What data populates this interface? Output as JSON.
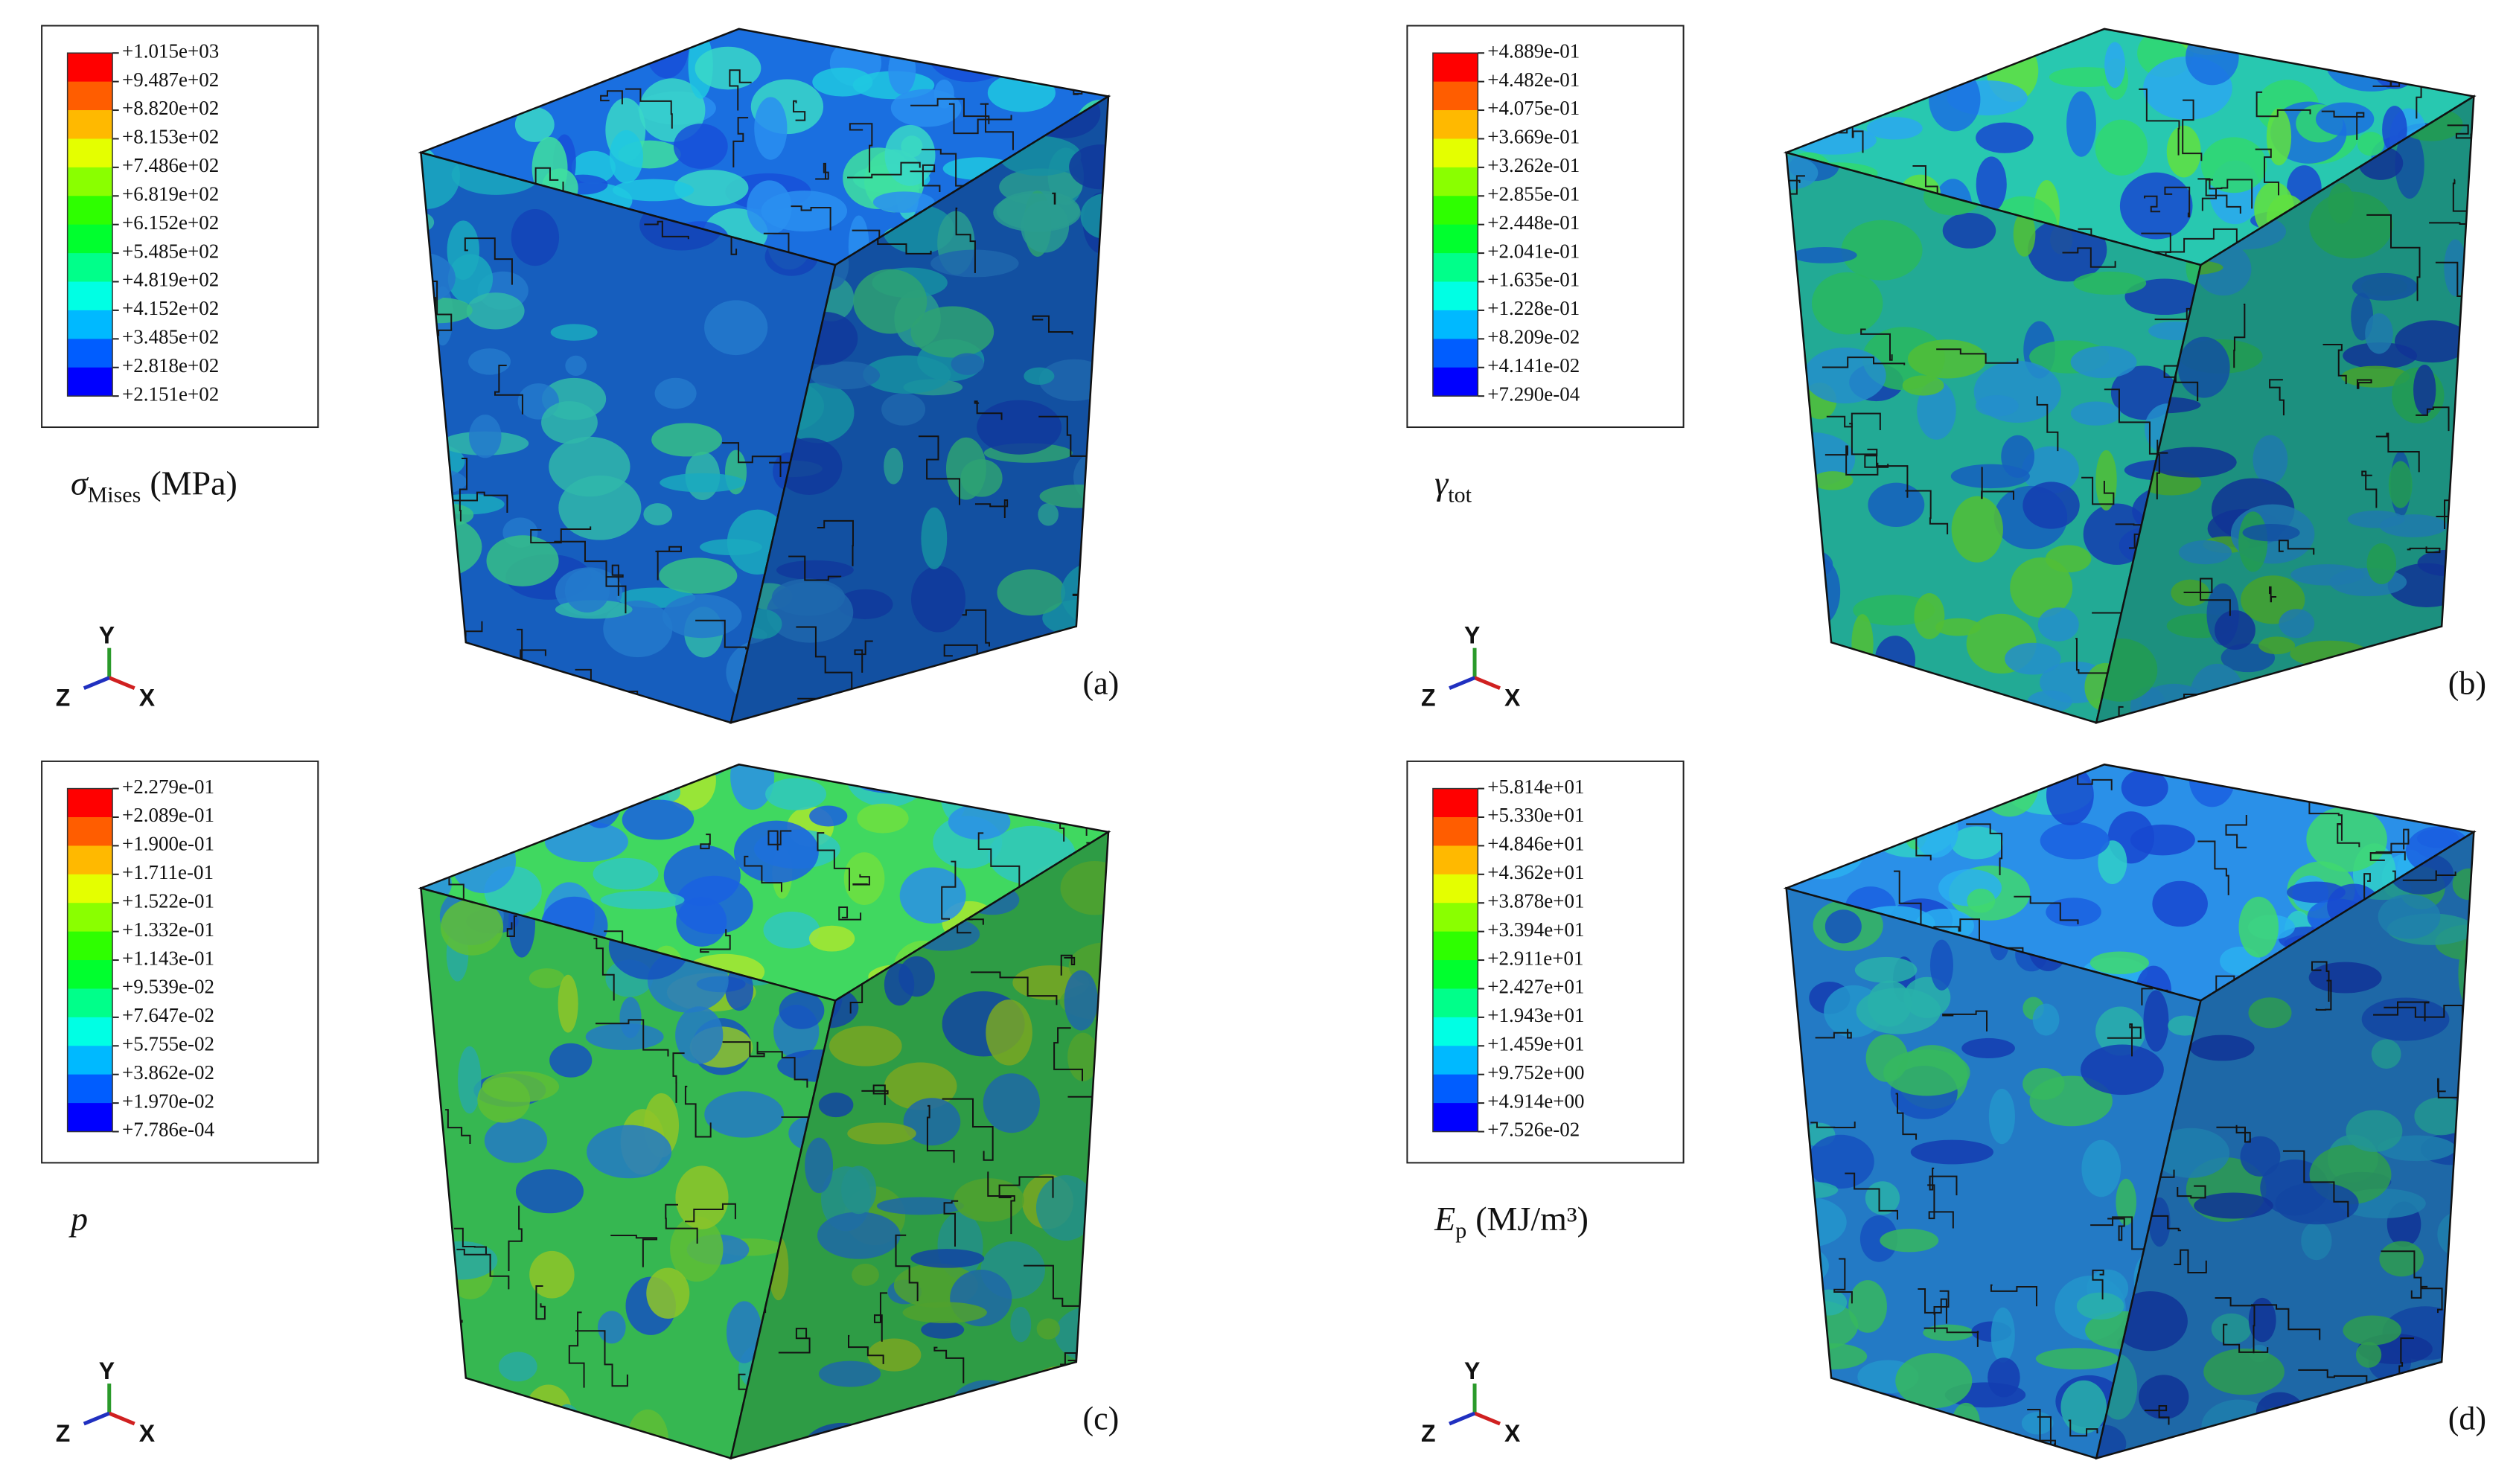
{
  "triad": {
    "y": "Y",
    "z": "Z",
    "x": "X"
  },
  "panels": [
    {
      "legend": [
        "+1.015e+03",
        "+9.487e+02",
        "+8.820e+02",
        "+8.153e+02",
        "+7.486e+02",
        "+6.819e+02",
        "+6.152e+02",
        "+5.485e+02",
        "+4.819e+02",
        "+4.152e+02",
        "+3.485e+02",
        "+2.818e+02",
        "+2.151e+02"
      ],
      "variable": {
        "symbol": "σ",
        "subscript": "Mises",
        "unit": "(MPa)"
      },
      "label": "(a)"
    },
    {
      "legend": [
        "+4.889e-01",
        "+4.482e-01",
        "+4.075e-01",
        "+3.669e-01",
        "+3.262e-01",
        "+2.855e-01",
        "+2.448e-01",
        "+2.041e-01",
        "+1.635e-01",
        "+1.228e-01",
        "+8.209e-02",
        "+4.141e-02",
        "+7.290e-04"
      ],
      "variable": {
        "symbol": "γ",
        "subscript": "tot"
      },
      "label": "(b)"
    },
    {
      "legend": [
        "+2.279e-01",
        "+2.089e-01",
        "+1.900e-01",
        "+1.711e-01",
        "+1.522e-01",
        "+1.332e-01",
        "+1.143e-01",
        "+9.539e-02",
        "+7.647e-02",
        "+5.755e-02",
        "+3.862e-02",
        "+1.970e-02",
        "+7.786e-04"
      ],
      "variable": {
        "symbol": "p"
      },
      "label": "(c)"
    },
    {
      "legend": [
        "+5.814e+01",
        "+5.330e+01",
        "+4.846e+01",
        "+4.362e+01",
        "+3.878e+01",
        "+3.394e+01",
        "+2.911e+01",
        "+2.427e+01",
        "+1.943e+01",
        "+1.459e+01",
        "+9.752e+00",
        "+4.914e+00",
        "+7.526e-02"
      ],
      "variable": {
        "symbol": "E",
        "subscript": "p",
        "unit": "(MJ/m³)"
      },
      "label": "(d)"
    }
  ]
}
